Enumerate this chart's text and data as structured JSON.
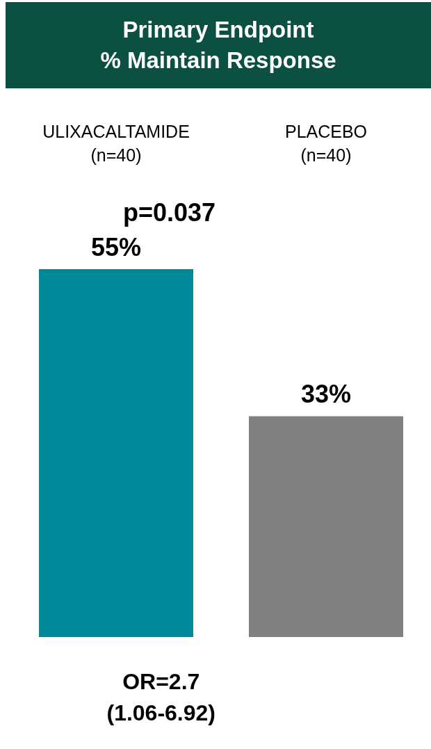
{
  "chart_data": {
    "type": "bar",
    "title": "Primary Endpoint\n% Maintain Response",
    "categories": [
      "ULIXACALTAMIDE\n(n=40)",
      "PLACEBO\n(n=40)"
    ],
    "values": [
      55,
      33
    ],
    "colors": [
      "#008a99",
      "#808080"
    ],
    "value_labels": [
      "55%",
      "33%"
    ],
    "annotations": [
      "p=0.037",
      "OR=2.7\n(1.06-6.92)"
    ]
  }
}
